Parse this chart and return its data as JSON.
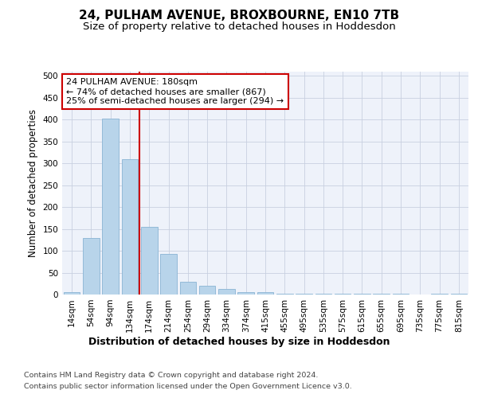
{
  "title": "24, PULHAM AVENUE, BROXBOURNE, EN10 7TB",
  "subtitle": "Size of property relative to detached houses in Hoddesdon",
  "xlabel": "Distribution of detached houses by size in Hoddesdon",
  "ylabel": "Number of detached properties",
  "categories": [
    "14sqm",
    "54sqm",
    "94sqm",
    "134sqm",
    "174sqm",
    "214sqm",
    "254sqm",
    "294sqm",
    "334sqm",
    "374sqm",
    "415sqm",
    "455sqm",
    "495sqm",
    "535sqm",
    "575sqm",
    "615sqm",
    "655sqm",
    "695sqm",
    "735sqm",
    "775sqm",
    "815sqm"
  ],
  "values": [
    5,
    130,
    403,
    310,
    155,
    93,
    30,
    20,
    12,
    5,
    5,
    2,
    1,
    1,
    1,
    2,
    1,
    1,
    0,
    1,
    2
  ],
  "bar_color": "#b8d4ea",
  "bar_edge_color": "#8ab4d4",
  "vline_x_idx": 4,
  "vline_color": "#cc0000",
  "annotation_line1": "24 PULHAM AVENUE: 180sqm",
  "annotation_line2": "← 74% of detached houses are smaller (867)",
  "annotation_line3": "25% of semi-detached houses are larger (294) →",
  "annotation_box_color": "#ffffff",
  "annotation_box_edge_color": "#cc0000",
  "ylim": [
    0,
    510
  ],
  "yticks": [
    0,
    50,
    100,
    150,
    200,
    250,
    300,
    350,
    400,
    450,
    500
  ],
  "footer_line1": "Contains HM Land Registry data © Crown copyright and database right 2024.",
  "footer_line2": "Contains public sector information licensed under the Open Government Licence v3.0.",
  "bg_color": "#eef2fa",
  "title_fontsize": 11,
  "subtitle_fontsize": 9.5,
  "axis_label_fontsize": 9,
  "tick_fontsize": 7.5,
  "footer_fontsize": 6.8,
  "ylabel_fontsize": 8.5
}
